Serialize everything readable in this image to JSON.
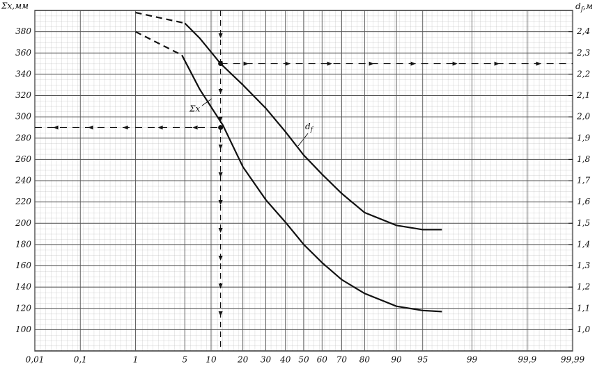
{
  "chart_data": {
    "type": "line",
    "x_scale": "probability",
    "y_label": "Σx,мм",
    "y2_label": {
      "symbol": "d",
      "subscript": "f",
      "unit": ",м"
    },
    "xlim": [
      0.01,
      99.99
    ],
    "xticks": [
      {
        "value": 0.01,
        "label": "0,01"
      },
      {
        "value": 0.1,
        "label": "0,1"
      },
      1,
      5,
      10,
      20,
      30,
      40,
      50,
      60,
      70,
      80,
      90,
      95,
      99,
      {
        "value": 99.9,
        "label": "99,9"
      },
      {
        "value": 99.99,
        "label": "99,99"
      }
    ],
    "ylim": [
      80,
      400
    ],
    "yticks": [
      100,
      120,
      140,
      160,
      180,
      200,
      220,
      240,
      260,
      280,
      300,
      320,
      340,
      360,
      380
    ],
    "y2lim": [
      0.9,
      2.5
    ],
    "y2ticks": [
      {
        "value": 1.0,
        "label": "1,0"
      },
      {
        "value": 1.1,
        "label": "1,1"
      },
      {
        "value": 1.2,
        "label": "1,2"
      },
      {
        "value": 1.3,
        "label": "1,3"
      },
      {
        "value": 1.4,
        "label": "1,4"
      },
      {
        "value": 1.5,
        "label": "1,5"
      },
      {
        "value": 1.6,
        "label": "1,6"
      },
      {
        "value": 1.7,
        "label": "1,7"
      },
      {
        "value": 1.8,
        "label": "1,8"
      },
      {
        "value": 1.9,
        "label": "1,9"
      },
      {
        "value": 2.0,
        "label": "2,0"
      },
      {
        "value": 2.1,
        "label": "2,1"
      },
      {
        "value": 2.2,
        "label": "2,2"
      },
      {
        "value": 2.3,
        "label": "2,3"
      },
      {
        "value": 2.4,
        "label": "2,4"
      }
    ],
    "grid": true,
    "color": "#111111",
    "series": [
      {
        "axis": "y",
        "style": "dashed",
        "x": [
          1,
          4.6
        ],
        "values": [
          380,
          358
        ]
      },
      {
        "name": "Σx",
        "axis": "y",
        "style": "solid",
        "x": [
          4.6,
          7.5,
          13.2,
          20,
          30,
          40,
          50,
          60,
          70,
          80,
          90,
          95,
          97.2
        ],
        "values": [
          358,
          326,
          292,
          253,
          222,
          201,
          180,
          163,
          147,
          134,
          122,
          118,
          117
        ]
      },
      {
        "axis": "y2",
        "style": "dashed",
        "x": [
          1,
          5
        ],
        "values": [
          2.49,
          2.44
        ]
      },
      {
        "name": {
          "symbol": "d",
          "subscript": "f"
        },
        "axis": "y2",
        "style": "solid",
        "x": [
          5,
          7.5,
          12.5,
          20,
          30,
          40,
          50,
          60,
          70,
          80,
          90,
          95,
          97.2
        ],
        "values": [
          2.44,
          2.37,
          2.25,
          2.15,
          2.04,
          1.93,
          1.82,
          1.73,
          1.64,
          1.55,
          1.49,
          1.47,
          1.47
        ]
      }
    ],
    "guide": {
      "x": 12.5,
      "y": 290,
      "y2": 2.25
    }
  }
}
